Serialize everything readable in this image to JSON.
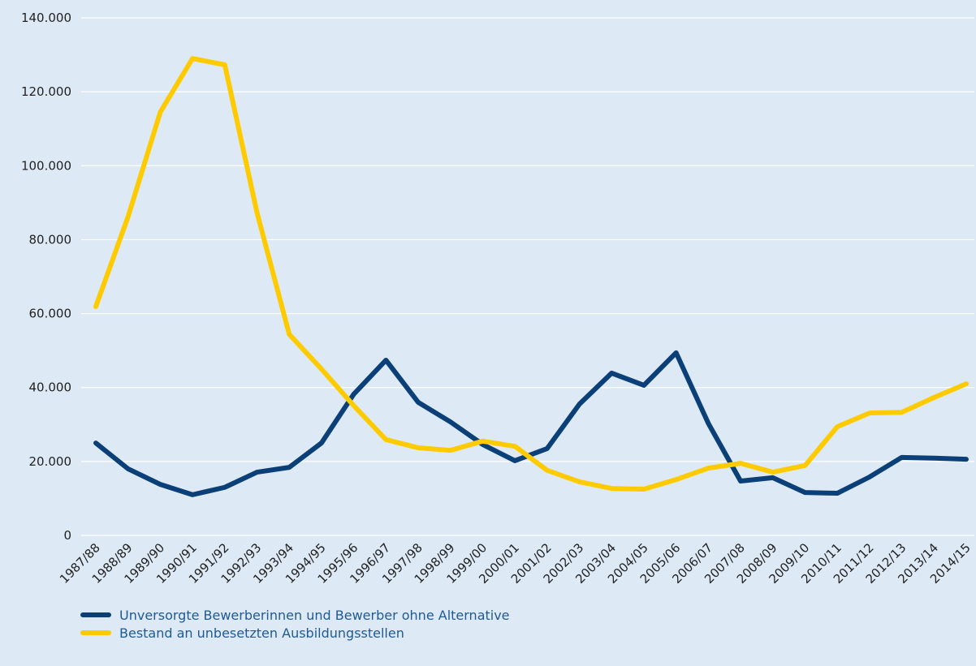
{
  "chart_data": {
    "type": "line",
    "categories": [
      "1987/88",
      "1988/89",
      "1989/90",
      "1990/91",
      "1991/92",
      "1992/93",
      "1993/94",
      "1994/95",
      "1995/96",
      "1996/97",
      "1997/98",
      "1998/99",
      "1999/00",
      "2000/01",
      "2001/02",
      "2002/03",
      "2003/04",
      "2004/05",
      "2005/06",
      "2006/07",
      "2007/08",
      "2008/09",
      "2009/10",
      "2010/11",
      "2011/12",
      "2012/13",
      "2013/14",
      "2014/15"
    ],
    "series": [
      {
        "name": "Unversorgte Bewerberinnen und Bewerber ohne Alternative",
        "color": "#0b3f78",
        "values": [
          25000,
          18000,
          13800,
          11000,
          13000,
          17100,
          18400,
          25000,
          38200,
          47400,
          36000,
          30700,
          24600,
          20200,
          23500,
          35500,
          43900,
          40600,
          49400,
          30300,
          14700,
          15600,
          11600,
          11400,
          15800,
          21100,
          20900,
          20600
        ]
      },
      {
        "name": "Bestand an unbesetzten Ausbildungsstellen",
        "color": "#fecb00",
        "values": [
          61900,
          86200,
          114500,
          129000,
          127300,
          87300,
          54400,
          45000,
          35100,
          25900,
          23700,
          23000,
          25500,
          24100,
          17600,
          14500,
          12700,
          12500,
          15100,
          18200,
          19500,
          17100,
          18900,
          29400,
          33100,
          33300,
          37300,
          41000
        ]
      }
    ],
    "ylim": [
      0,
      140000
    ],
    "yticks": [
      0,
      {
        "value": 20000,
        "label": "20.000"
      },
      {
        "value": 40000,
        "label": "40.000"
      },
      {
        "value": 60000,
        "label": "60.000"
      },
      {
        "value": 80000,
        "label": "80.000"
      },
      {
        "value": 100000,
        "label": "100.000"
      },
      {
        "value": 120000,
        "label": "120.000"
      },
      {
        "value": 140000,
        "label": "140.000"
      }
    ],
    "grid": true
  }
}
